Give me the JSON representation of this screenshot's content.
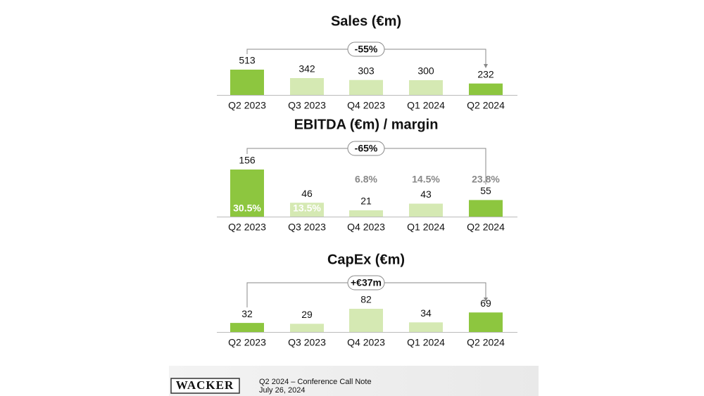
{
  "chart_data": [
    {
      "type": "bar",
      "title": "Sales (€m)",
      "annotation": "-55%",
      "categories": [
        "Q2 2023",
        "Q3 2023",
        "Q4 2023",
        "Q1 2024",
        "Q2 2024"
      ],
      "values": [
        513,
        342,
        303,
        300,
        232
      ],
      "colors": [
        "#8dc63f",
        "#d5e9b3",
        "#d5e9b3",
        "#d5e9b3",
        "#8dc63f"
      ]
    },
    {
      "type": "bar",
      "title": "EBITDA (€m) / margin",
      "annotation": "-65%",
      "categories": [
        "Q2 2023",
        "Q3 2023",
        "Q4 2023",
        "Q1 2024",
        "Q2 2024"
      ],
      "values": [
        156,
        46,
        21,
        43,
        55
      ],
      "colors": [
        "#8dc63f",
        "#d5e9b3",
        "#d5e9b3",
        "#d5e9b3",
        "#8dc63f"
      ],
      "margins": {
        "values": [
          30.5,
          13.5,
          6.8,
          14.5,
          23.8
        ],
        "value_labels": [
          "30.5%",
          "13.5%",
          "6.8%",
          "14.5%",
          "23.8%"
        ]
      }
    },
    {
      "type": "bar",
      "title": "CapEx (€m)",
      "annotation": "+€37m",
      "categories": [
        "Q2 2023",
        "Q3 2023",
        "Q4 2023",
        "Q1 2024",
        "Q2 2024"
      ],
      "values": [
        32,
        29,
        82,
        34,
        69
      ],
      "colors": [
        "#8dc63f",
        "#d5e9b3",
        "#d5e9b3",
        "#d5e9b3",
        "#8dc63f"
      ]
    }
  ],
  "footer": {
    "logo": "WACKER",
    "note": "Q2 2024 – Conference Call Note",
    "date": "July 26, 2024"
  }
}
